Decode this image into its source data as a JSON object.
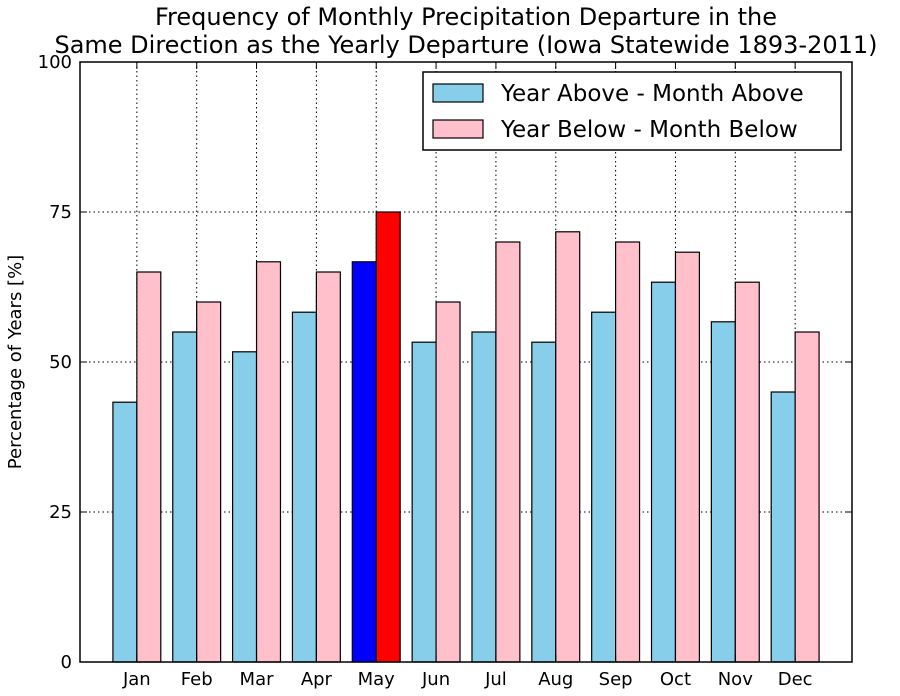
{
  "chart_data": {
    "type": "bar",
    "title_lines": [
      "Frequency of Monthly Precipitation Departure in the",
      "Same Direction as the Yearly Departure (Iowa Statewide 1893-2011)"
    ],
    "ylabel": "Percentage of Years [%]",
    "xlabel": "",
    "ylim": [
      0,
      100
    ],
    "yticks": [
      0,
      25,
      50,
      75,
      100
    ],
    "grid": true,
    "legend_position": "top-right",
    "categories": [
      "Jan",
      "Feb",
      "Mar",
      "Apr",
      "May",
      "Jun",
      "Jul",
      "Aug",
      "Sep",
      "Oct",
      "Nov",
      "Dec"
    ],
    "highlight_category": "May",
    "series": [
      {
        "name": "Year Above - Month Above",
        "color": "#87ceeb",
        "highlight_color": "#0000ff",
        "values": [
          43.3,
          55.0,
          51.7,
          58.3,
          66.7,
          53.3,
          55.0,
          53.3,
          58.3,
          63.3,
          56.7,
          45.0
        ]
      },
      {
        "name": "Year Below - Month Below",
        "color": "#ffc0cb",
        "highlight_color": "#ff0000",
        "values": [
          65.0,
          60.0,
          66.7,
          65.0,
          75.0,
          60.0,
          70.0,
          71.7,
          70.0,
          68.3,
          63.3,
          55.0
        ]
      }
    ]
  }
}
